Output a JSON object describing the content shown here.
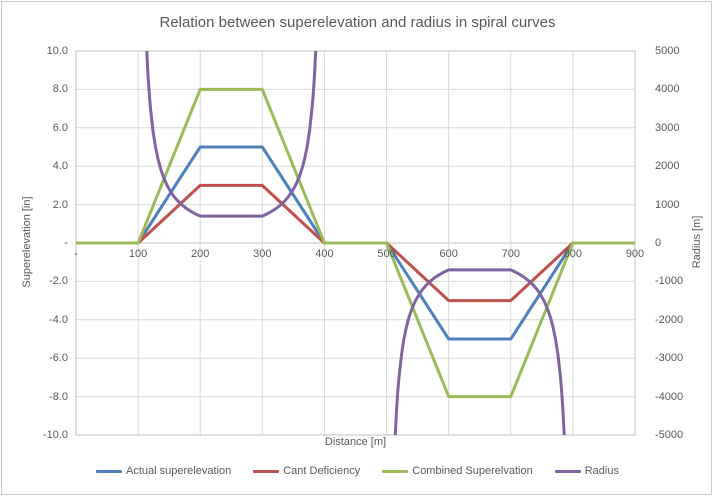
{
  "title": "Relation between superelevation and radius in spiral curves",
  "colors": {
    "gridline": "#d9d9d9",
    "axis_line": "#bfbfbf",
    "text": "#595959",
    "series_blue": "#4f81bd",
    "series_red": "#c0504d",
    "series_green": "#9bbb59",
    "series_purple": "#8064a2"
  },
  "axes": {
    "x": {
      "title": "Distance [m]",
      "ticks": [
        "-",
        "100",
        "200",
        "300",
        "400",
        "500",
        "600",
        "700",
        "800",
        "900"
      ]
    },
    "y_left": {
      "title": "Superelevation [in]",
      "ticks": [
        "10.0",
        "8.0",
        "6.0",
        "4.0",
        "2.0",
        "-",
        "-2.0",
        "-4.0",
        "-6.0",
        "-8.0",
        "-10.0"
      ]
    },
    "y_right": {
      "title": "Radius [m]",
      "ticks": [
        "5000",
        "4000",
        "3000",
        "2000",
        "1000",
        "0",
        "-1000",
        "-2000",
        "-3000",
        "-4000",
        "-5000"
      ]
    }
  },
  "chart_data": {
    "type": "line",
    "title": "Relation between superelevation and radius in spiral curves",
    "xlabel": "Distance [m]",
    "ylabel_left": "Superelevation [in]",
    "ylabel_right": "Radius [m]",
    "xlim": [
      0,
      900
    ],
    "ylim_left": [
      -10,
      10
    ],
    "ylim_right": [
      -5000,
      5000
    ],
    "grid": true,
    "legend_position": "bottom",
    "series": [
      {
        "name": "Actual superelevation",
        "color": "#4f81bd",
        "axis": "left",
        "segments": [
          {
            "x": [
              0,
              100,
              200,
              300,
              400,
              500,
              600,
              700,
              800,
              900
            ],
            "y": [
              0,
              0,
              5,
              5,
              0,
              0,
              -5,
              -5,
              0,
              0
            ]
          }
        ]
      },
      {
        "name": "Cant Deficiency",
        "color": "#c0504d",
        "axis": "left",
        "segments": [
          {
            "x": [
              0,
              100,
              200,
              300,
              400,
              500,
              600,
              700,
              800,
              900
            ],
            "y": [
              0,
              0,
              3,
              3,
              0,
              0,
              -3,
              -3,
              0,
              0
            ]
          }
        ]
      },
      {
        "name": "Combined Superelvation",
        "color": "#9bbb59",
        "axis": "left",
        "segments": [
          {
            "x": [
              0,
              100,
              200,
              300,
              400,
              500,
              600,
              700,
              800,
              900
            ],
            "y": [
              0,
              0,
              8,
              8,
              0,
              0,
              -8,
              -8,
              0,
              0
            ]
          }
        ]
      },
      {
        "name": "Radius",
        "color": "#8064a2",
        "axis": "right",
        "circular_curve_radius_m": 700,
        "spiral_length_m": 100,
        "segments": [
          {
            "x": [
              114,
              116,
              118,
              120,
              124,
              128,
              132,
              136,
              140,
              146,
              152,
              158,
              164,
              170,
              178,
              186,
              194,
              200,
              300,
              306,
              314,
              322,
              330,
              336,
              342,
              348,
              354,
              360,
              364,
              368,
              372,
              376,
              380,
              382,
              384,
              386
            ],
            "y": [
              5000,
              4375,
              3889,
              3500,
              2917,
              2500,
              2188,
              1944,
              1750,
              1522,
              1346,
              1207,
              1094,
              1000,
              897,
              814,
              745,
              700,
              700,
              745,
              814,
              897,
              1000,
              1094,
              1207,
              1346,
              1522,
              1750,
              1944,
              2188,
              2500,
              2917,
              3500,
              3889,
              4375,
              5000
            ]
          },
          {
            "x": [
              514,
              516,
              518,
              520,
              524,
              528,
              532,
              536,
              540,
              546,
              552,
              558,
              564,
              570,
              578,
              586,
              594,
              600,
              700,
              706,
              714,
              722,
              730,
              736,
              742,
              748,
              754,
              760,
              764,
              768,
              772,
              776,
              780,
              782,
              784,
              786
            ],
            "y": [
              -5000,
              -4375,
              -3889,
              -3500,
              -2917,
              -2500,
              -2188,
              -1944,
              -1750,
              -1522,
              -1346,
              -1207,
              -1094,
              -1000,
              -897,
              -814,
              -745,
              -700,
              -700,
              -745,
              -814,
              -897,
              -1000,
              -1094,
              -1207,
              -1346,
              -1522,
              -1750,
              -1944,
              -2188,
              -2500,
              -2917,
              -3500,
              -3889,
              -4375,
              -5000
            ]
          }
        ]
      }
    ]
  }
}
